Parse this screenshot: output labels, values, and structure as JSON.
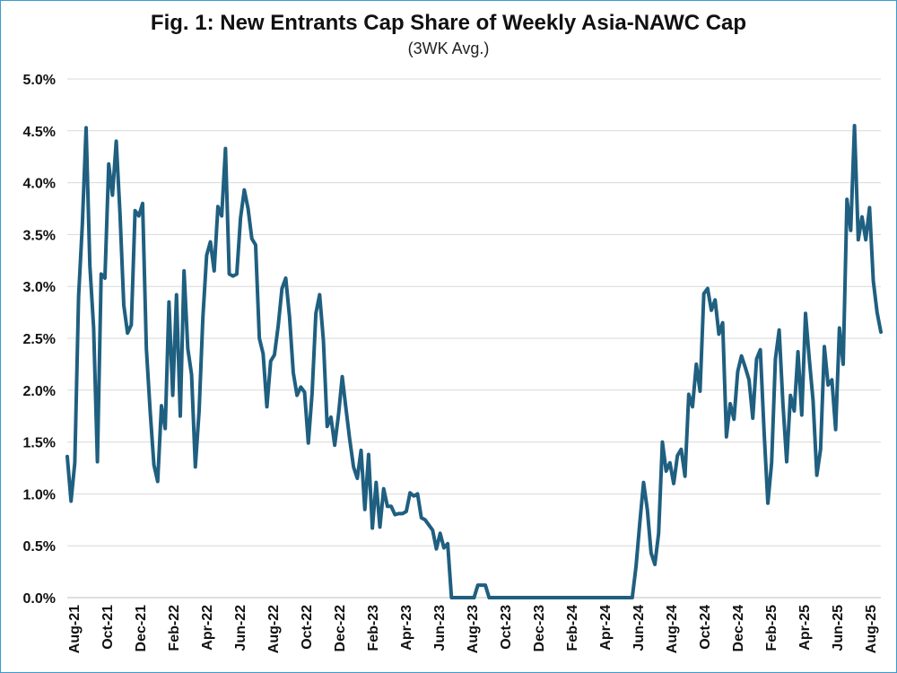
{
  "chart_data": {
    "type": "line",
    "title": "Fig. 1: New Entrants Cap Share of Weekly Asia-NAWC Cap",
    "subtitle": "(3WK Avg.)",
    "xlabel": "",
    "ylabel": "",
    "ylim": [
      0,
      5
    ],
    "y_ticks": [
      "0.0%",
      "0.5%",
      "1.0%",
      "1.5%",
      "2.0%",
      "2.5%",
      "3.0%",
      "3.5%",
      "4.0%",
      "4.5%",
      "5.0%"
    ],
    "x_ticks": [
      "Aug-21",
      "Oct-21",
      "Dec-21",
      "Feb-22",
      "Apr-22",
      "Jun-22",
      "Aug-22",
      "Oct-22",
      "Dec-22",
      "Feb-23",
      "Apr-23",
      "Jun-23",
      "Aug-23",
      "Oct-23",
      "Dec-23",
      "Feb-24",
      "Apr-24",
      "Jun-24",
      "Aug-24",
      "Oct-24",
      "Dec-24",
      "Feb-25",
      "Apr-25",
      "Jun-25",
      "Aug-25"
    ],
    "grid": true,
    "line_color": "#1f5f80",
    "series": [
      {
        "values": [
          1.36,
          0.93,
          1.3,
          2.9,
          3.6,
          4.53,
          3.2,
          2.6,
          1.31,
          3.12,
          3.08,
          4.18,
          3.88,
          4.4,
          3.7,
          2.82,
          2.55,
          2.63,
          3.73,
          3.68,
          3.8,
          2.4,
          1.8,
          1.28,
          1.12,
          1.85,
          1.63,
          2.85,
          1.95,
          2.92,
          1.75,
          3.15,
          2.4,
          2.15,
          1.26,
          1.8,
          2.7,
          3.3,
          3.43,
          3.15,
          3.77,
          3.68,
          4.33,
          3.12,
          3.1,
          3.12,
          3.66,
          3.93,
          3.75,
          3.46,
          3.4,
          2.5,
          2.35,
          1.84,
          2.28,
          2.34,
          2.62,
          2.98,
          3.08,
          2.71,
          2.17,
          1.95,
          2.03,
          1.98,
          1.49,
          1.97,
          2.74,
          2.92,
          2.48,
          1.65,
          1.74,
          1.47,
          1.76,
          2.13,
          1.82,
          1.52,
          1.26,
          1.15,
          1.42,
          0.85,
          1.38,
          0.67,
          1.11,
          0.68,
          1.05,
          0.88,
          0.88,
          0.8,
          0.81,
          0.81,
          0.83,
          1.01,
          0.98,
          1.0,
          0.77,
          0.75,
          0.7,
          0.65,
          0.47,
          0.62,
          0.48,
          0.52,
          0.0,
          0.0,
          0.0,
          0.0,
          0.0,
          0.0,
          0.0,
          0.12,
          0.12,
          0.12,
          0.0,
          0.0,
          0.0,
          0.0,
          0.0,
          0.0,
          0.0,
          0.0,
          0.0,
          0.0,
          0.0,
          0.0,
          0.0,
          0.0,
          0.0,
          0.0,
          0.0,
          0.0,
          0.0,
          0.0,
          0.0,
          0.0,
          0.0,
          0.0,
          0.0,
          0.0,
          0.0,
          0.0,
          0.0,
          0.0,
          0.0,
          0.0,
          0.0,
          0.0,
          0.0,
          0.0,
          0.0,
          0.0,
          0.0,
          0.3,
          0.72,
          1.11,
          0.85,
          0.43,
          0.32,
          0.62,
          1.5,
          1.22,
          1.3,
          1.1,
          1.37,
          1.43,
          1.17,
          1.96,
          1.84,
          2.25,
          1.99,
          2.93,
          2.98,
          2.77,
          2.87,
          2.54,
          2.65,
          1.55,
          1.87,
          1.72,
          2.18,
          2.33,
          2.22,
          2.1,
          1.73,
          2.3,
          2.39,
          1.6,
          0.91,
          1.3,
          2.3,
          2.58,
          1.87,
          1.31,
          1.95,
          1.8,
          2.37,
          1.76,
          2.74,
          2.3,
          1.9,
          1.18,
          1.43,
          2.42,
          2.05,
          2.1,
          1.62,
          2.6,
          2.25,
          3.84,
          3.54,
          4.55,
          3.45,
          3.67,
          3.45,
          3.76,
          3.05,
          2.75,
          2.56
        ]
      }
    ]
  }
}
